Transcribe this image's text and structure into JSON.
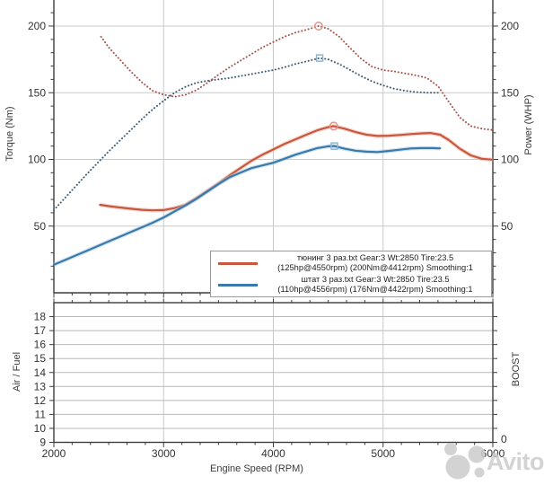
{
  "chart_data": {
    "type": "line",
    "title": "",
    "x": {
      "label": "Engine Speed (RPM)",
      "range": [
        2000,
        6000
      ],
      "major_ticks": [
        2000,
        3000,
        4000,
        5000,
        6000
      ],
      "minor_divisions_per_major": 6,
      "grid": true
    },
    "top_panel": {
      "y_left": {
        "label": "Torque (Nm)",
        "major_ticks": [
          50,
          100,
          150,
          200
        ],
        "minor_step": 10,
        "range": [
          0,
          219
        ]
      },
      "y_right": {
        "label": "Power (WHP)",
        "major_ticks": [
          50,
          100,
          150,
          200
        ]
      },
      "series": [
        {
          "id": "torque-tuned",
          "name": "тюнинг torque (Nm)",
          "style": "dotted",
          "color": "#a9544b",
          "peak": {
            "rpm": 4412,
            "value": 200,
            "marker": "circle",
            "marker_color": "#dd958d"
          },
          "points": [
            [
              2430,
              192
            ],
            [
              2500,
              184
            ],
            [
              2600,
              175
            ],
            [
              2700,
              166
            ],
            [
              2800,
              158
            ],
            [
              2900,
              151.5
            ],
            [
              3000,
              148.5
            ],
            [
              3100,
              147
            ],
            [
              3200,
              148.5
            ],
            [
              3300,
              152
            ],
            [
              3400,
              157.5
            ],
            [
              3500,
              163.5
            ],
            [
              3600,
              169
            ],
            [
              3700,
              174
            ],
            [
              3800,
              179
            ],
            [
              3900,
              184
            ],
            [
              4000,
              188
            ],
            [
              4100,
              192
            ],
            [
              4200,
              195
            ],
            [
              4300,
              197.2
            ],
            [
              4412,
              200
            ],
            [
              4500,
              198
            ],
            [
              4600,
              192
            ],
            [
              4700,
              183.5
            ],
            [
              4800,
              175.5
            ],
            [
              4900,
              169.5
            ],
            [
              5000,
              167
            ],
            [
              5100,
              166
            ],
            [
              5200,
              164.5
            ],
            [
              5300,
              163
            ],
            [
              5400,
              161
            ],
            [
              5500,
              155
            ],
            [
              5600,
              143
            ],
            [
              5700,
              131.5
            ],
            [
              5800,
              125
            ],
            [
              5900,
              123
            ],
            [
              6000,
              122
            ]
          ]
        },
        {
          "id": "torque-stock",
          "name": "штат torque (Nm)",
          "style": "dotted",
          "color": "#3f5d75",
          "peak": {
            "rpm": 4422,
            "value": 176,
            "marker": "square",
            "marker_color": "#8fb6d5"
          },
          "points": [
            [
              2000,
              62
            ],
            [
              2100,
              71
            ],
            [
              2200,
              80
            ],
            [
              2300,
              89
            ],
            [
              2400,
              97.5
            ],
            [
              2500,
              106
            ],
            [
              2600,
              114
            ],
            [
              2700,
              122
            ],
            [
              2800,
              130
            ],
            [
              2900,
              137.5
            ],
            [
              3000,
              144
            ],
            [
              3100,
              150
            ],
            [
              3200,
              154.5
            ],
            [
              3300,
              157.5
            ],
            [
              3400,
              159
            ],
            [
              3500,
              160
            ],
            [
              3600,
              161
            ],
            [
              3700,
              162.5
            ],
            [
              3800,
              164
            ],
            [
              3900,
              165.5
            ],
            [
              4000,
              167
            ],
            [
              4100,
              169
            ],
            [
              4200,
              171.5
            ],
            [
              4300,
              173.5
            ],
            [
              4422,
              176
            ],
            [
              4500,
              175
            ],
            [
              4600,
              171.5
            ],
            [
              4700,
              167
            ],
            [
              4800,
              162.5
            ],
            [
              4900,
              158.5
            ],
            [
              5000,
              155.5
            ],
            [
              5100,
              153
            ],
            [
              5200,
              151.5
            ],
            [
              5300,
              150.5
            ],
            [
              5400,
              150
            ],
            [
              5500,
              150
            ]
          ]
        },
        {
          "id": "power-tuned",
          "name": "тюнинг power (WHP)",
          "style": "solid",
          "color": "#c9573e",
          "halo": "#edb3a4",
          "peak": {
            "rpm": 4550,
            "value": 125,
            "marker": "circle",
            "marker_color": "#dd958d"
          },
          "points": [
            [
              2420,
              66
            ],
            [
              2500,
              65
            ],
            [
              2600,
              64
            ],
            [
              2700,
              63
            ],
            [
              2800,
              62.2
            ],
            [
              2900,
              61.8
            ],
            [
              3000,
              62
            ],
            [
              3100,
              63.5
            ],
            [
              3200,
              66
            ],
            [
              3300,
              71
            ],
            [
              3400,
              76.5
            ],
            [
              3500,
              82
            ],
            [
              3600,
              88
            ],
            [
              3700,
              93.5
            ],
            [
              3800,
              99
            ],
            [
              3900,
              103.5
            ],
            [
              4000,
              107.5
            ],
            [
              4100,
              111.5
            ],
            [
              4200,
              115
            ],
            [
              4300,
              118.5
            ],
            [
              4400,
              121.8
            ],
            [
              4500,
              124.2
            ],
            [
              4550,
              125
            ],
            [
              4650,
              123
            ],
            [
              4750,
              120.5
            ],
            [
              4850,
              118.5
            ],
            [
              4950,
              117.6
            ],
            [
              5050,
              117.8
            ],
            [
              5150,
              118.3
            ],
            [
              5250,
              119
            ],
            [
              5350,
              119.5
            ],
            [
              5430,
              119.8
            ],
            [
              5520,
              118.5
            ],
            [
              5600,
              114.5
            ],
            [
              5700,
              108
            ],
            [
              5800,
              103
            ],
            [
              5900,
              100.5
            ],
            [
              6000,
              99.8
            ]
          ]
        },
        {
          "id": "power-stock",
          "name": "штат power (WHP)",
          "style": "solid",
          "color": "#3a7aa9",
          "halo": "#aac9e0",
          "peak": {
            "rpm": 4556,
            "value": 110,
            "marker": "square",
            "marker_color": "#8fb6d5"
          },
          "points": [
            [
              2000,
              21
            ],
            [
              2100,
              24.5
            ],
            [
              2200,
              28
            ],
            [
              2300,
              31.5
            ],
            [
              2400,
              35
            ],
            [
              2500,
              38.5
            ],
            [
              2600,
              42
            ],
            [
              2700,
              45.5
            ],
            [
              2800,
              49
            ],
            [
              2900,
              52.5
            ],
            [
              3000,
              56.5
            ],
            [
              3100,
              61
            ],
            [
              3200,
              65.5
            ],
            [
              3300,
              70.5
            ],
            [
              3400,
              76
            ],
            [
              3500,
              81.5
            ],
            [
              3600,
              86.5
            ],
            [
              3700,
              90
            ],
            [
              3800,
              93.5
            ],
            [
              3900,
              95.5
            ],
            [
              4000,
              97.5
            ],
            [
              4100,
              100.5
            ],
            [
              4200,
              103.5
            ],
            [
              4300,
              106
            ],
            [
              4400,
              108.5
            ],
            [
              4500,
              109.8
            ],
            [
              4556,
              110
            ],
            [
              4650,
              108
            ],
            [
              4750,
              106.5
            ],
            [
              4850,
              105.8
            ],
            [
              4950,
              105.5
            ],
            [
              5050,
              106.3
            ],
            [
              5150,
              107.3
            ],
            [
              5250,
              108.2
            ],
            [
              5350,
              108.5
            ],
            [
              5450,
              108.5
            ],
            [
              5520,
              108.3
            ]
          ]
        }
      ]
    },
    "bottom_panel": {
      "y_left": {
        "label": "Air / Fuel",
        "major_ticks": [
          9,
          10,
          11,
          12,
          13,
          14,
          15,
          16,
          17,
          18
        ],
        "range": [
          9,
          19
        ]
      },
      "y_right": {
        "label": "BOOST",
        "tick_labels": [
          "0"
        ]
      },
      "series": []
    },
    "legend": {
      "entries": [
        {
          "color": "#c9573e",
          "line1": "тюнинг 3 раз.txt Gear:3 Wt:2850 Tire:23.5",
          "line2": "(125hp@4550rpm) (200Nm@4412rpm) Smoothing:1"
        },
        {
          "color": "#3a7aa9",
          "line1": "штат 3 раз.txt Gear:3 Wt:2850 Tire:23.5",
          "line2": "(110hp@4556rpm) (176Nm@4422rpm) Smoothing:1"
        }
      ]
    },
    "watermark": {
      "text": "Avito"
    }
  }
}
